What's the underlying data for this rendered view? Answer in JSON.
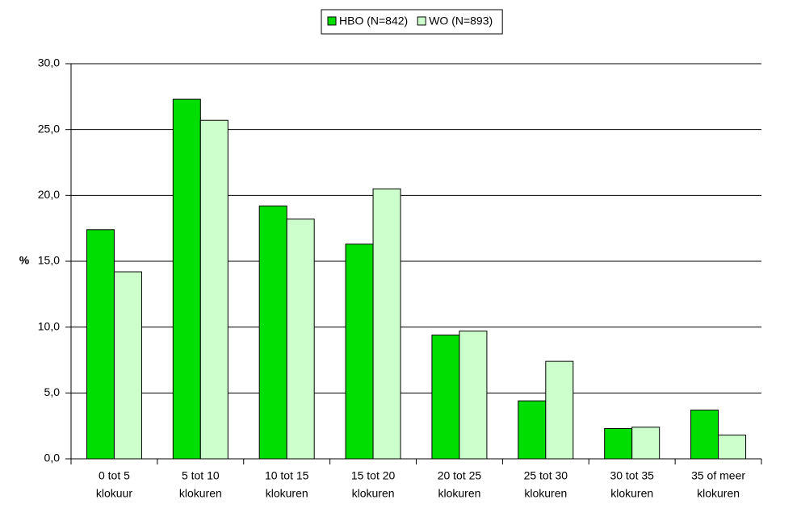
{
  "chart_data": {
    "type": "bar",
    "ylabel": "%",
    "categories": [
      [
        "0 tot 5",
        "klokuur"
      ],
      [
        "5 tot 10",
        "klokuren"
      ],
      [
        "10 tot 15",
        "klokuren"
      ],
      [
        "15 tot 20",
        "klokuren"
      ],
      [
        "20 tot 25",
        "klokuren"
      ],
      [
        "25 tot 30",
        "klokuren"
      ],
      [
        "30 tot 35",
        "klokuren"
      ],
      [
        "35 of meer",
        "klokuren"
      ]
    ],
    "series": [
      {
        "name": "HBO (N=842)",
        "color": "#00dd00",
        "values": [
          17.4,
          27.3,
          19.2,
          16.3,
          9.4,
          4.4,
          2.3,
          3.7
        ]
      },
      {
        "name": "WO (N=893)",
        "color": "#ccffcc",
        "values": [
          14.2,
          25.7,
          18.2,
          20.5,
          9.7,
          7.4,
          2.4,
          1.8
        ]
      }
    ],
    "ylim": [
      0,
      30
    ],
    "yticks": [
      {
        "value": 0,
        "label": "0,0"
      },
      {
        "value": 5,
        "label": "5,0"
      },
      {
        "value": 10,
        "label": "10,0"
      },
      {
        "value": 15,
        "label": "15,0"
      },
      {
        "value": 20,
        "label": "20,0"
      },
      {
        "value": 25,
        "label": "25,0"
      },
      {
        "value": 30,
        "label": "30,0"
      }
    ],
    "grid": true,
    "legend": "top"
  }
}
